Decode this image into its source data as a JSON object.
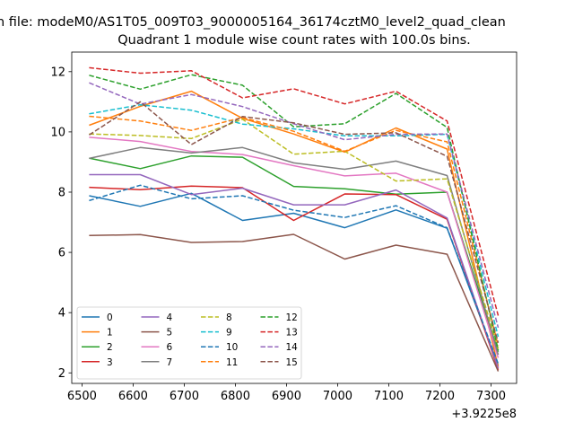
{
  "chart_data": {
    "type": "line",
    "suptitle": "n file: modeM0/AS1T05_009T03_9000005164_36174cztM0_level2_quad_clean",
    "title": "Quadrant 1 module wise count rates with 100.0s bins.",
    "xlabel": "",
    "ylabel": "",
    "x_offset_label": "+3.9225e8",
    "x": [
      6514,
      6614,
      6714,
      6814,
      6914,
      7014,
      7114,
      7214,
      7314
    ],
    "xlim": [
      6480,
      7350
    ],
    "ylim": [
      1.65,
      12.65
    ],
    "xticks": [
      6500,
      6600,
      6700,
      6800,
      6900,
      7000,
      7100,
      7200,
      7300
    ],
    "yticks": [
      2,
      4,
      6,
      8,
      10,
      12
    ],
    "legend_position": "lower-left",
    "series": [
      {
        "name": "0",
        "color": "#1f77b4",
        "dash": "solid",
        "values": [
          7.88,
          7.53,
          7.96,
          7.06,
          7.3,
          6.82,
          7.41,
          6.8,
          2.25
        ]
      },
      {
        "name": "1",
        "color": "#ff7f0e",
        "dash": "solid",
        "values": [
          10.22,
          10.85,
          11.35,
          10.45,
          9.93,
          9.33,
          10.13,
          9.43,
          2.2
        ]
      },
      {
        "name": "2",
        "color": "#2ca02c",
        "dash": "solid",
        "values": [
          9.13,
          8.78,
          9.2,
          9.16,
          8.19,
          8.11,
          7.93,
          8.0,
          2.7
        ]
      },
      {
        "name": "3",
        "color": "#d62728",
        "dash": "solid",
        "values": [
          8.16,
          8.08,
          8.2,
          8.15,
          7.06,
          7.94,
          7.92,
          7.1,
          2.1
        ]
      },
      {
        "name": "4",
        "color": "#9467bd",
        "dash": "solid",
        "values": [
          8.58,
          8.58,
          7.92,
          8.13,
          7.58,
          7.58,
          8.07,
          7.14,
          2.15
        ]
      },
      {
        "name": "5",
        "color": "#8c564b",
        "dash": "solid",
        "values": [
          6.56,
          6.59,
          6.33,
          6.36,
          6.6,
          5.78,
          6.24,
          5.94,
          2.05
        ]
      },
      {
        "name": "6",
        "color": "#e377c2",
        "dash": "solid",
        "values": [
          9.82,
          9.68,
          9.35,
          9.25,
          8.88,
          8.54,
          8.63,
          8.0,
          2.5
        ]
      },
      {
        "name": "7",
        "color": "#7f7f7f",
        "dash": "solid",
        "values": [
          9.12,
          9.48,
          9.3,
          9.48,
          8.97,
          8.76,
          9.03,
          8.55,
          2.6
        ]
      },
      {
        "name": "8",
        "color": "#bcbd22",
        "dash": "dashed",
        "values": [
          9.93,
          9.88,
          9.78,
          10.42,
          9.26,
          9.36,
          8.37,
          8.44,
          2.8
        ]
      },
      {
        "name": "9",
        "color": "#17becf",
        "dash": "dashed",
        "values": [
          10.6,
          10.9,
          10.72,
          10.26,
          10.1,
          9.87,
          9.87,
          9.92,
          3.2
        ]
      },
      {
        "name": "10",
        "color": "#1f77b4",
        "dash": "dashed",
        "values": [
          7.72,
          8.23,
          7.78,
          7.88,
          7.4,
          7.16,
          7.55,
          6.82,
          2.3
        ]
      },
      {
        "name": "11",
        "color": "#ff7f0e",
        "dash": "dashed",
        "values": [
          10.52,
          10.36,
          10.05,
          10.48,
          10.02,
          9.36,
          10.05,
          9.67,
          2.9
        ]
      },
      {
        "name": "12",
        "color": "#2ca02c",
        "dash": "dashed",
        "values": [
          11.88,
          11.42,
          11.9,
          11.55,
          10.17,
          10.27,
          11.28,
          10.15,
          2.75
        ]
      },
      {
        "name": "13",
        "color": "#d62728",
        "dash": "dashed",
        "values": [
          12.13,
          11.95,
          12.03,
          11.13,
          11.43,
          10.93,
          11.35,
          10.36,
          3.9
        ]
      },
      {
        "name": "14",
        "color": "#9467bd",
        "dash": "dashed",
        "values": [
          11.63,
          10.92,
          11.24,
          10.84,
          10.27,
          9.74,
          9.92,
          9.93,
          3.5
        ]
      },
      {
        "name": "15",
        "color": "#8c564b",
        "dash": "dashed",
        "values": [
          9.9,
          11.0,
          9.58,
          10.51,
          10.3,
          9.92,
          9.97,
          9.19,
          3.0
        ]
      }
    ]
  }
}
